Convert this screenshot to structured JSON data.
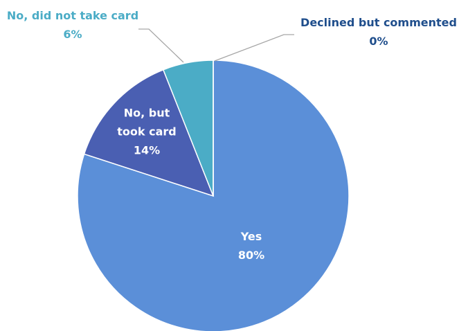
{
  "chart_data": {
    "type": "pie",
    "categories": [
      "Yes",
      "No, but took card",
      "No, did not take card",
      "Declined but commented"
    ],
    "values": [
      80,
      14,
      6,
      0
    ],
    "value_labels": [
      "80%",
      "14%",
      "6%",
      "0%"
    ],
    "colors": [
      "#5b8fd8",
      "#4a5fb2",
      "#4bacc6",
      "#1f4e8c"
    ],
    "label_colors": [
      "#ffffff",
      "#ffffff",
      "#4bacc6",
      "#1f4e8c"
    ]
  }
}
